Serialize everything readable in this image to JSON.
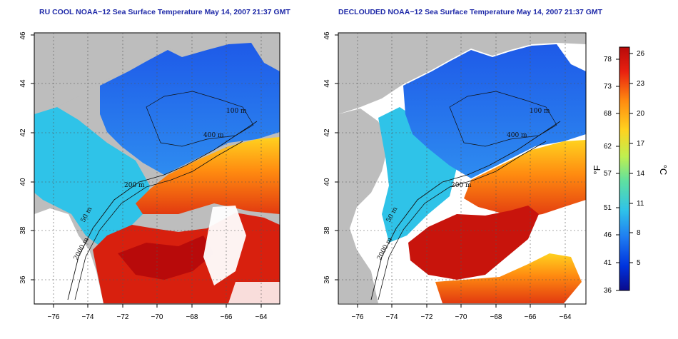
{
  "maps": [
    {
      "id": "left",
      "title": "RU COOL NOAA−12 Sea Surface Temperature May 14, 2007 21:37 GMT",
      "x_ticks": [
        "−76",
        "−74",
        "−72",
        "−70",
        "−68",
        "−66",
        "−64"
      ],
      "y_ticks": [
        "36",
        "38",
        "40",
        "42",
        "44",
        "46"
      ],
      "contour_labels": [
        "100 m",
        "200 m",
        "400 m",
        "2000 m",
        "50 m"
      ]
    },
    {
      "id": "right",
      "title": "DECLOUDED NOAA−12 Sea Surface Temperature May 14, 2007 21:37 GMT",
      "x_ticks": [
        "−76",
        "−74",
        "−72",
        "−70",
        "−68",
        "−66",
        "−64"
      ],
      "y_ticks": [
        "36",
        "38",
        "40",
        "42",
        "44",
        "46"
      ],
      "contour_labels": [
        "100 m",
        "200 m",
        "400 m",
        "2000 m",
        "50 m"
      ]
    }
  ],
  "colorbar": {
    "fahrenheit_ticks": [
      "36",
      "41",
      "46",
      "51",
      "57",
      "62",
      "68",
      "73",
      "78"
    ],
    "celsius_ticks": [
      "5",
      "8",
      "11",
      "14",
      "17",
      "20",
      "23",
      "26"
    ],
    "left_unit": "°F",
    "right_unit": "°C",
    "colors": [
      "#0a0a8c",
      "#0033dd",
      "#1f7df2",
      "#2fc3e8",
      "#5fe0a0",
      "#bff050",
      "#ffd21f",
      "#ff8a10",
      "#e82010",
      "#b80a0a"
    ]
  },
  "colors": {
    "land": "#bdbdbd",
    "cloud": "#ffffff",
    "title": "#1f2aa8"
  }
}
